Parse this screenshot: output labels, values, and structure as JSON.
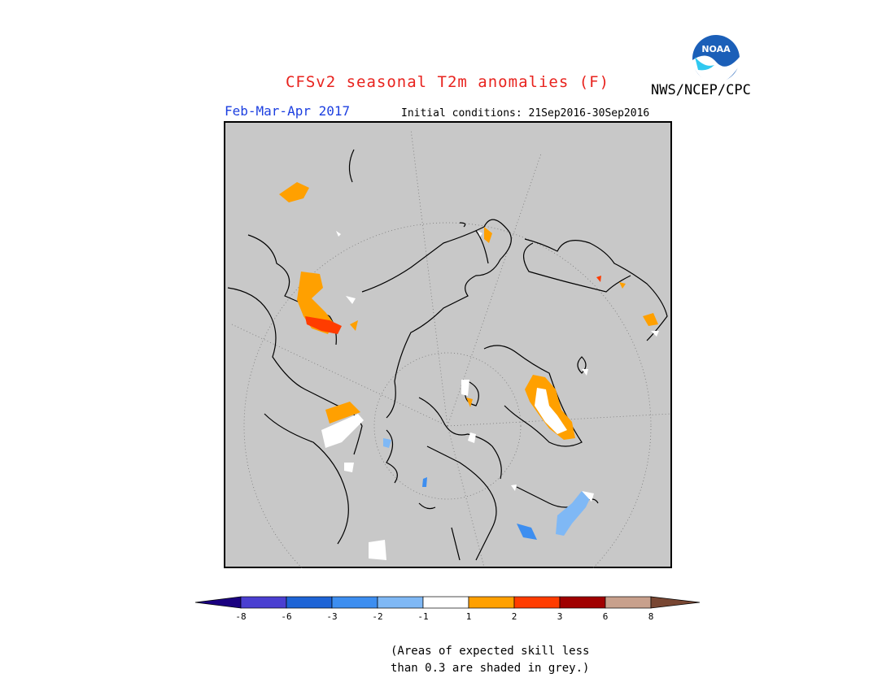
{
  "header": {
    "title": "CFSv2 seasonal T2m anomalies (F)",
    "agency": "NWS/NCEP/CPC",
    "logo_text": "NOAA",
    "season": "Feb-Mar-Apr 2017",
    "initial_conditions": "Initial conditions: 21Sep2016-30Sep2016"
  },
  "colorbar": {
    "tick_labels": [
      "-8",
      "-6",
      "-3",
      "-2",
      "-1",
      "1",
      "2",
      "3",
      "6",
      "8"
    ],
    "colors": [
      "#1a0080",
      "#4a3fd1",
      "#1e64d6",
      "#3d8ef0",
      "#7fb8f5",
      "#ffffff",
      "#ffa000",
      "#ff3c00",
      "#a00000",
      "#c8a08c",
      "#784632"
    ]
  },
  "footnote": {
    "line1": "(Areas of expected skill less",
    "line2": "than 0.3 are shaded in grey.)"
  },
  "map": {
    "background": "#c8c8c8",
    "projection": "north-polar-stereographic"
  }
}
